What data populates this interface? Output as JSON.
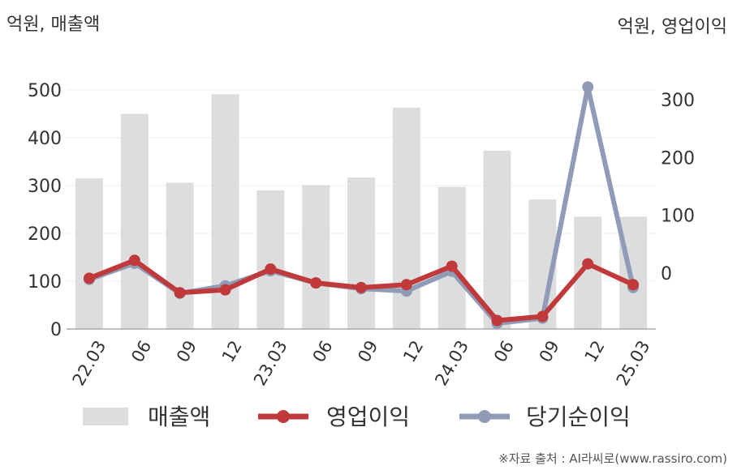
{
  "chart_data": {
    "type": "bar+line",
    "left_axis_label": "억원, 매출액",
    "right_axis_label": "억원, 영업이익",
    "categories": [
      "22.03",
      "06",
      "09",
      "12",
      "23.03",
      "06",
      "09",
      "12",
      "24.03",
      "06",
      "09",
      "12",
      "25.03"
    ],
    "left_ylim": [
      0,
      500
    ],
    "left_ticks": [
      0,
      100,
      200,
      300,
      400,
      500
    ],
    "right_ylim": [
      -100,
      350
    ],
    "right_ticks": [
      0,
      100,
      200,
      300
    ],
    "grid": true,
    "legend_position": "bottom",
    "series": [
      {
        "name": "매출액",
        "kind": "bar",
        "axis": "left",
        "color": "#dddddd",
        "values": [
          315,
          450,
          306,
          491,
          290,
          301,
          317,
          463,
          297,
          373,
          271,
          235,
          235
        ]
      },
      {
        "name": "영업이익",
        "kind": "line",
        "axis": "right",
        "color": "#c0393b",
        "values": [
          -9,
          22,
          -34,
          -29,
          7,
          -17,
          -25,
          -20,
          12,
          -82,
          -75,
          16,
          -20
        ]
      },
      {
        "name": "당기순이익",
        "kind": "line",
        "axis": "right",
        "color": "#8f9bb7",
        "values": [
          -11,
          17,
          -35,
          -22,
          4,
          -17,
          -27,
          -31,
          3,
          -87,
          -78,
          322,
          -25
        ]
      }
    ]
  },
  "source": "※자료 출처 : AI라씨로(www.rassiro.com)"
}
